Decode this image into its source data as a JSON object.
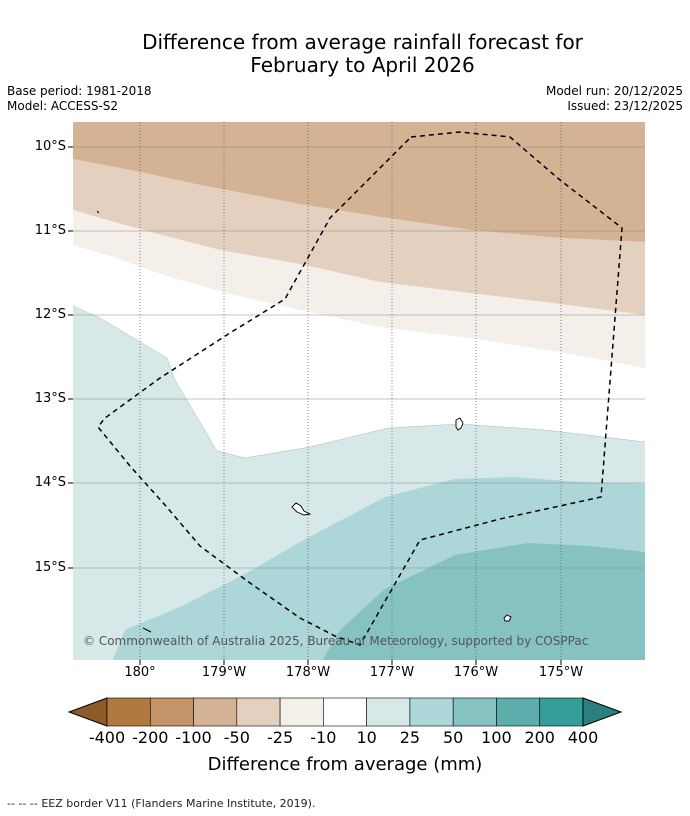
{
  "title_line1": "Difference from average rainfall forecast for",
  "title_line2": "February to April 2026",
  "base_period": "Base period: 1981-2018",
  "model": "Model: ACCESS-S2",
  "model_run": "Model run: 20/12/2025",
  "issued": "Issued: 23/12/2025",
  "lat_labels": [
    "10°S",
    "11°S",
    "12°S",
    "13°S",
    "14°S",
    "15°S"
  ],
  "lon_labels": [
    "180°",
    "179°W",
    "178°W",
    "177°W",
    "176°W",
    "175°W"
  ],
  "copyright": "© Commonwealth of Australia 2025, Bureau of Meteorology, supported by COSPPac",
  "colorbar": {
    "ticks": [
      "-400",
      "-200",
      "-100",
      "-50",
      "-25",
      "-10",
      "10",
      "25",
      "50",
      "100",
      "200",
      "400"
    ],
    "colors": [
      "#8f5a2a",
      "#b07940",
      "#c29467",
      "#d4b294",
      "#e3d0be",
      "#f5efea",
      "#ffffff",
      "#d6e9e8",
      "#acd6d7",
      "#85c2c1",
      "#5eadad",
      "#349c99",
      "#2b7f7d"
    ],
    "title": "Difference from average (mm)"
  },
  "legend": {
    "symbol": "-- -- --",
    "label": "EEZ border V11 (Flanders Marine Institute, 2019)."
  },
  "colors": {
    "land": "#ffffff",
    "eez_border": "#000000",
    "grid": "#777777"
  }
}
